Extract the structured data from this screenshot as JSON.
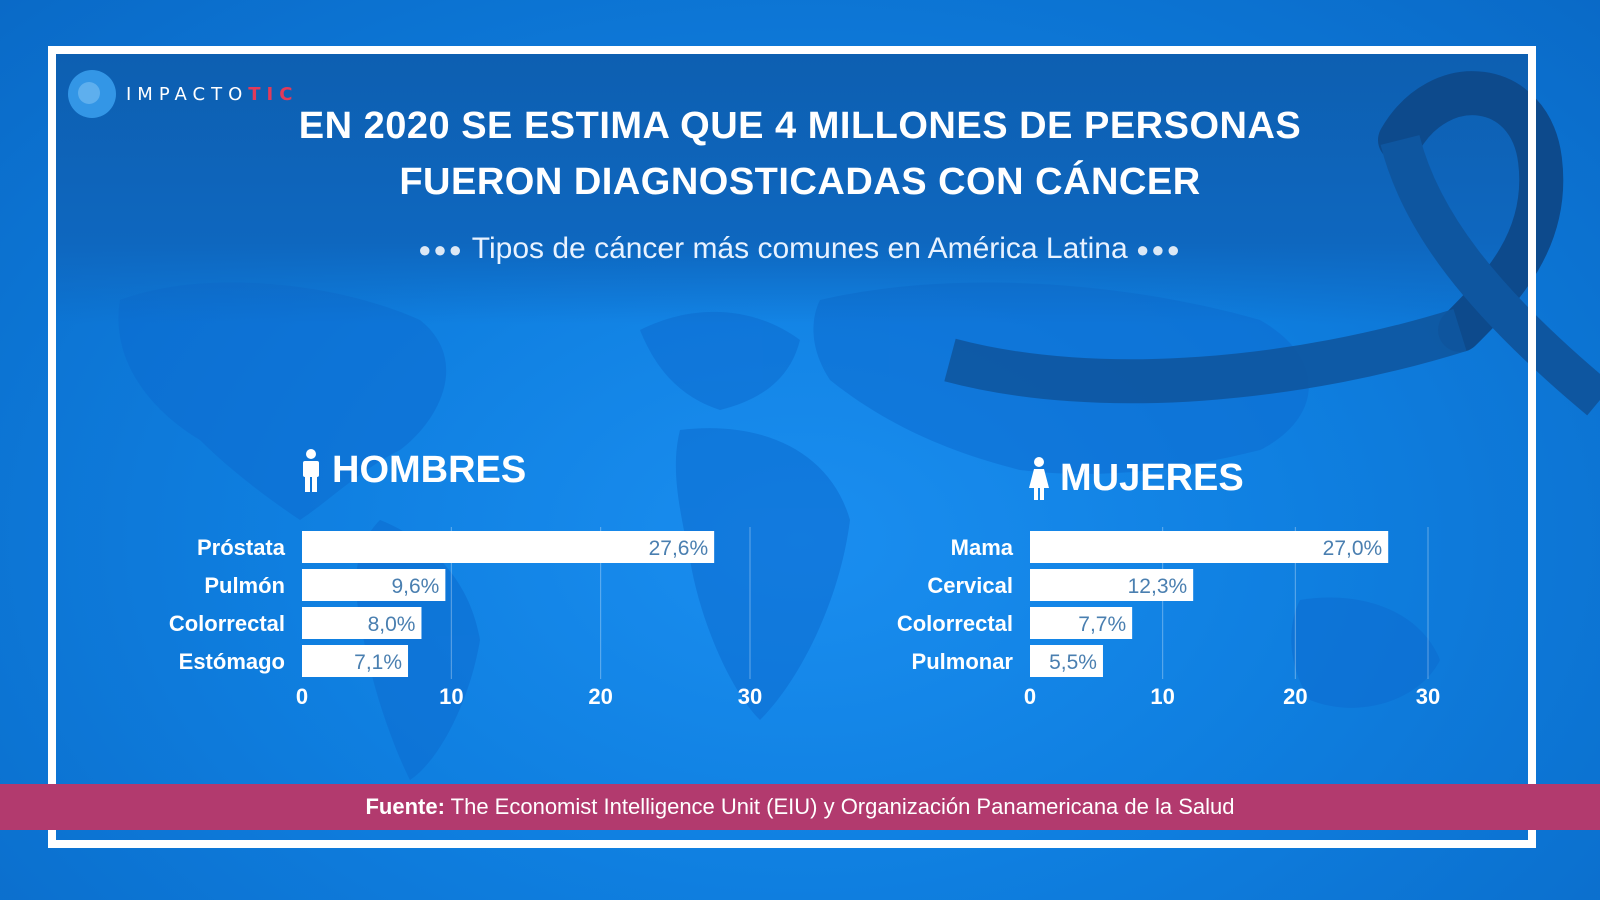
{
  "logo": {
    "text_main": "IMPACTO",
    "text_accent": "TIC",
    "accent_color": "#e23a5a"
  },
  "header": {
    "title_line1": "EN 2020 SE ESTIMA QUE 4 MILLONES DE PERSONAS",
    "title_line2": "FUERON DIAGNOSTICADAS CON CÁNCER",
    "subtitle": "Tipos de cáncer más comunes en América Latina"
  },
  "colors": {
    "background": "#0f7fe0",
    "bar": "#ffffff",
    "footer": "#b23a6e",
    "ribbon": "#0d4a8c"
  },
  "chart_data": [
    {
      "type": "bar",
      "orientation": "horizontal",
      "title": "HOMBRES",
      "icon": "male-icon",
      "categories": [
        "Próstata",
        "Pulmón",
        "Colorrectal",
        "Estómago"
      ],
      "values": [
        27.6,
        9.6,
        8.0,
        7.1
      ],
      "value_labels": [
        "27,6%",
        "9,6%",
        "8,0%",
        "7,1%"
      ],
      "xlim": [
        0,
        30
      ],
      "ticks": [
        "0",
        "10",
        "20",
        "30"
      ],
      "grid": true
    },
    {
      "type": "bar",
      "orientation": "horizontal",
      "title": "MUJERES",
      "icon": "female-icon",
      "categories": [
        "Mama",
        "Cervical",
        "Colorrectal",
        "Pulmonar"
      ],
      "values": [
        27.0,
        12.3,
        7.7,
        5.5
      ],
      "value_labels": [
        "27,0%",
        "12,3%",
        "7,7%",
        "5,5%"
      ],
      "xlim": [
        0,
        30
      ],
      "ticks": [
        "0",
        "10",
        "20",
        "30"
      ],
      "grid": true
    }
  ],
  "footer": {
    "label": "Fuente:",
    "text": "The Economist Intelligence Unit (EIU)  y Organización Panamericana de la Salud"
  }
}
